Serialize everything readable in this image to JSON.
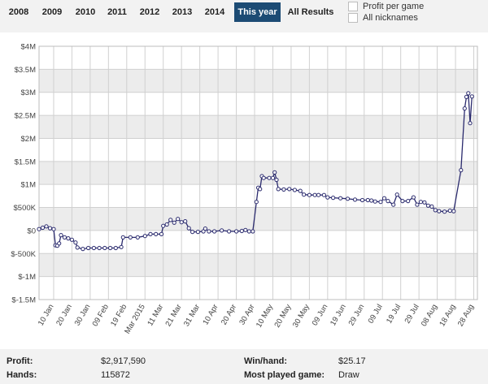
{
  "tabs": [
    {
      "label": "2008",
      "active": false
    },
    {
      "label": "2009",
      "active": false
    },
    {
      "label": "2010",
      "active": false
    },
    {
      "label": "2011",
      "active": false
    },
    {
      "label": "2012",
      "active": false
    },
    {
      "label": "2013",
      "active": false
    },
    {
      "label": "2014",
      "active": false
    },
    {
      "label": "This year",
      "active": true
    },
    {
      "label": "All Results",
      "active": false
    }
  ],
  "options": {
    "profit_per_game": "Profit per game",
    "all_nicknames": "All nicknames"
  },
  "colors": {
    "accent": "#1c4b74",
    "line": "#2b2b6e",
    "band": "#ececec"
  },
  "chart_data": {
    "type": "line",
    "title": "",
    "xlabel": "",
    "ylabel": "",
    "ylim": [
      -1500000,
      4000000
    ],
    "y_ticks": [
      {
        "value": 4000000,
        "label": "$4M"
      },
      {
        "value": 3500000,
        "label": "$3.5M"
      },
      {
        "value": 3000000,
        "label": "$3M"
      },
      {
        "value": 2500000,
        "label": "$2.5M"
      },
      {
        "value": 2000000,
        "label": "$2M"
      },
      {
        "value": 1500000,
        "label": "$1.5M"
      },
      {
        "value": 1000000,
        "label": "$1M"
      },
      {
        "value": 500000,
        "label": "$500K"
      },
      {
        "value": 0,
        "label": "$0"
      },
      {
        "value": -500000,
        "label": "$-500K"
      },
      {
        "value": -1000000,
        "label": "$-1M"
      },
      {
        "value": -1500000,
        "label": "$-1.5M"
      }
    ],
    "x_range": [
      "2015-01-02",
      "2015-08-30"
    ],
    "x_ticks": [
      {
        "date": "2015-01-10",
        "label": "10 Jan"
      },
      {
        "date": "2015-01-20",
        "label": "20 Jan"
      },
      {
        "date": "2015-01-30",
        "label": "30 Jan"
      },
      {
        "date": "2015-02-09",
        "label": "09 Feb"
      },
      {
        "date": "2015-02-19",
        "label": "19 Feb"
      },
      {
        "date": "2015-03-01",
        "label": "Mar 2015"
      },
      {
        "date": "2015-03-11",
        "label": "11 Mar"
      },
      {
        "date": "2015-03-21",
        "label": "21 Mar"
      },
      {
        "date": "2015-03-31",
        "label": "31 Mar"
      },
      {
        "date": "2015-04-10",
        "label": "10 Apr"
      },
      {
        "date": "2015-04-20",
        "label": "20 Apr"
      },
      {
        "date": "2015-04-30",
        "label": "30 Apr"
      },
      {
        "date": "2015-05-10",
        "label": "10 May"
      },
      {
        "date": "2015-05-20",
        "label": "20 May"
      },
      {
        "date": "2015-05-30",
        "label": "30 May"
      },
      {
        "date": "2015-06-09",
        "label": "09 Jun"
      },
      {
        "date": "2015-06-19",
        "label": "19 Jun"
      },
      {
        "date": "2015-06-29",
        "label": "29 Jun"
      },
      {
        "date": "2015-07-09",
        "label": "09 Jul"
      },
      {
        "date": "2015-07-19",
        "label": "19 Jul"
      },
      {
        "date": "2015-07-29",
        "label": "29 Jul"
      },
      {
        "date": "2015-08-08",
        "label": "08 Aug"
      },
      {
        "date": "2015-08-18",
        "label": "18 Aug"
      },
      {
        "date": "2015-08-28",
        "label": "28 Aug"
      }
    ],
    "grid": true,
    "legend": "none",
    "series": [
      {
        "points": [
          [
            "2015-01-02",
            30000
          ],
          [
            "2015-01-04",
            60000
          ],
          [
            "2015-01-06",
            90000
          ],
          [
            "2015-01-08",
            50000
          ],
          [
            "2015-01-10",
            30000
          ],
          [
            "2015-01-11",
            -320000
          ],
          [
            "2015-01-12",
            -330000
          ],
          [
            "2015-01-13",
            -280000
          ],
          [
            "2015-01-14",
            -100000
          ],
          [
            "2015-01-16",
            -150000
          ],
          [
            "2015-01-18",
            -170000
          ],
          [
            "2015-01-20",
            -200000
          ],
          [
            "2015-01-22",
            -260000
          ],
          [
            "2015-01-23",
            -370000
          ],
          [
            "2015-01-26",
            -400000
          ],
          [
            "2015-01-29",
            -380000
          ],
          [
            "2015-02-01",
            -380000
          ],
          [
            "2015-02-04",
            -380000
          ],
          [
            "2015-02-07",
            -380000
          ],
          [
            "2015-02-10",
            -380000
          ],
          [
            "2015-02-13",
            -380000
          ],
          [
            "2015-02-16",
            -360000
          ],
          [
            "2015-02-17",
            -150000
          ],
          [
            "2015-02-21",
            -150000
          ],
          [
            "2015-02-25",
            -150000
          ],
          [
            "2015-03-01",
            -120000
          ],
          [
            "2015-03-04",
            -80000
          ],
          [
            "2015-03-07",
            -80000
          ],
          [
            "2015-03-10",
            -80000
          ],
          [
            "2015-03-11",
            100000
          ],
          [
            "2015-03-13",
            130000
          ],
          [
            "2015-03-15",
            230000
          ],
          [
            "2015-03-17",
            170000
          ],
          [
            "2015-03-19",
            250000
          ],
          [
            "2015-03-21",
            180000
          ],
          [
            "2015-03-23",
            200000
          ],
          [
            "2015-03-25",
            50000
          ],
          [
            "2015-03-27",
            -30000
          ],
          [
            "2015-03-30",
            -30000
          ],
          [
            "2015-04-02",
            -20000
          ],
          [
            "2015-04-03",
            40000
          ],
          [
            "2015-04-05",
            -20000
          ],
          [
            "2015-04-08",
            -20000
          ],
          [
            "2015-04-12",
            0
          ],
          [
            "2015-04-16",
            -20000
          ],
          [
            "2015-04-20",
            -20000
          ],
          [
            "2015-04-23",
            -10000
          ],
          [
            "2015-04-25",
            10000
          ],
          [
            "2015-04-27",
            -20000
          ],
          [
            "2015-04-29",
            -20000
          ],
          [
            "2015-05-01",
            620000
          ],
          [
            "2015-05-02",
            930000
          ],
          [
            "2015-05-03",
            900000
          ],
          [
            "2015-05-04",
            1180000
          ],
          [
            "2015-05-05",
            1140000
          ],
          [
            "2015-05-08",
            1140000
          ],
          [
            "2015-05-10",
            1140000
          ],
          [
            "2015-05-11",
            1260000
          ],
          [
            "2015-05-12",
            1100000
          ],
          [
            "2015-05-13",
            900000
          ],
          [
            "2015-05-16",
            890000
          ],
          [
            "2015-05-19",
            900000
          ],
          [
            "2015-05-22",
            880000
          ],
          [
            "2015-05-25",
            860000
          ],
          [
            "2015-05-27",
            780000
          ],
          [
            "2015-05-30",
            770000
          ],
          [
            "2015-06-02",
            770000
          ],
          [
            "2015-06-04",
            770000
          ],
          [
            "2015-06-07",
            770000
          ],
          [
            "2015-06-09",
            720000
          ],
          [
            "2015-06-12",
            710000
          ],
          [
            "2015-06-16",
            700000
          ],
          [
            "2015-06-20",
            690000
          ],
          [
            "2015-06-24",
            670000
          ],
          [
            "2015-06-28",
            660000
          ],
          [
            "2015-07-01",
            660000
          ],
          [
            "2015-07-03",
            650000
          ],
          [
            "2015-07-05",
            630000
          ],
          [
            "2015-07-08",
            620000
          ],
          [
            "2015-07-10",
            700000
          ],
          [
            "2015-07-12",
            640000
          ],
          [
            "2015-07-15",
            560000
          ],
          [
            "2015-07-17",
            780000
          ],
          [
            "2015-07-20",
            640000
          ],
          [
            "2015-07-23",
            640000
          ],
          [
            "2015-07-26",
            720000
          ],
          [
            "2015-07-28",
            560000
          ],
          [
            "2015-07-30",
            620000
          ],
          [
            "2015-08-01",
            610000
          ],
          [
            "2015-08-03",
            540000
          ],
          [
            "2015-08-05",
            520000
          ],
          [
            "2015-08-07",
            440000
          ],
          [
            "2015-08-09",
            420000
          ],
          [
            "2015-08-12",
            410000
          ],
          [
            "2015-08-15",
            430000
          ],
          [
            "2015-08-17",
            420000
          ],
          [
            "2015-08-21",
            1310000
          ],
          [
            "2015-08-23",
            2650000
          ],
          [
            "2015-08-24",
            2900000
          ],
          [
            "2015-08-25",
            2980000
          ],
          [
            "2015-08-26",
            2330000
          ],
          [
            "2015-08-27",
            2910000
          ]
        ]
      }
    ]
  },
  "stats": {
    "profit_label": "Profit:",
    "profit_value": "$2,917,590",
    "hands_label": "Hands:",
    "hands_value": "115872",
    "winhand_label": "Win/hand:",
    "winhand_value": "$25.17",
    "most_played_label": "Most played game:",
    "most_played_value": "Draw"
  }
}
